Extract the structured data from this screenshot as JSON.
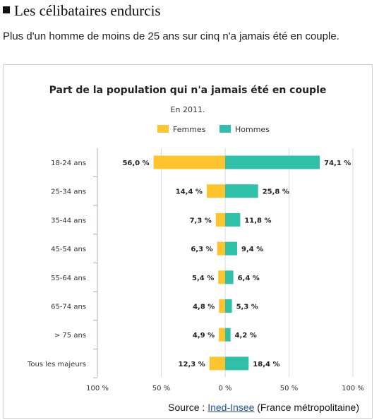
{
  "article": {
    "heading": "Les célibataires endurcis",
    "subtitle": "Plus d'un homme de moins de 25 ans sur cinq n'a jamais été en couple."
  },
  "source": {
    "prefix": "Source : ",
    "link": "Ined-Insee",
    "suffix": " (France métropolitaine)"
  },
  "colors": {
    "femmes": "#fdc42e",
    "hommes": "#2fc0aa",
    "grid": "#d9d9d9",
    "axis": "#9fb2c8"
  },
  "chart_data": {
    "type": "bar",
    "orientation": "horizontal-diverging",
    "title": "Part de la population qui n'a jamais été en couple",
    "subtitle": "En 2011.",
    "categories": [
      "18-24 ans",
      "25-34 ans",
      "35-44 ans",
      "45-54 ans",
      "55-64 ans",
      "65-74 ans",
      "> 75 ans",
      "Tous les majeurs"
    ],
    "series": [
      {
        "name": "Femmes",
        "values": [
          56.0,
          14.4,
          7.3,
          6.3,
          5.4,
          4.8,
          4.9,
          12.3
        ],
        "labels": [
          "56,0 %",
          "14,4 %",
          "7,3 %",
          "6,3 %",
          "5,4 %",
          "4,8 %",
          "4,9 %",
          "12,3 %"
        ]
      },
      {
        "name": "Hommes",
        "values": [
          74.1,
          25.8,
          11.8,
          9.4,
          6.4,
          5.3,
          4.2,
          18.4
        ],
        "labels": [
          "74,1 %",
          "25,8 %",
          "11,8 %",
          "9,4 %",
          "6,4 %",
          "5,3 %",
          "4,2 %",
          "18,4 %"
        ]
      }
    ],
    "xlim": [
      -100,
      100
    ],
    "xticks": [
      -100,
      -50,
      0,
      50,
      100
    ],
    "xtick_labels": [
      "100 %",
      "50 %",
      "0 %",
      "50 %",
      "100 %"
    ],
    "grid": true,
    "legend": "top-center"
  }
}
